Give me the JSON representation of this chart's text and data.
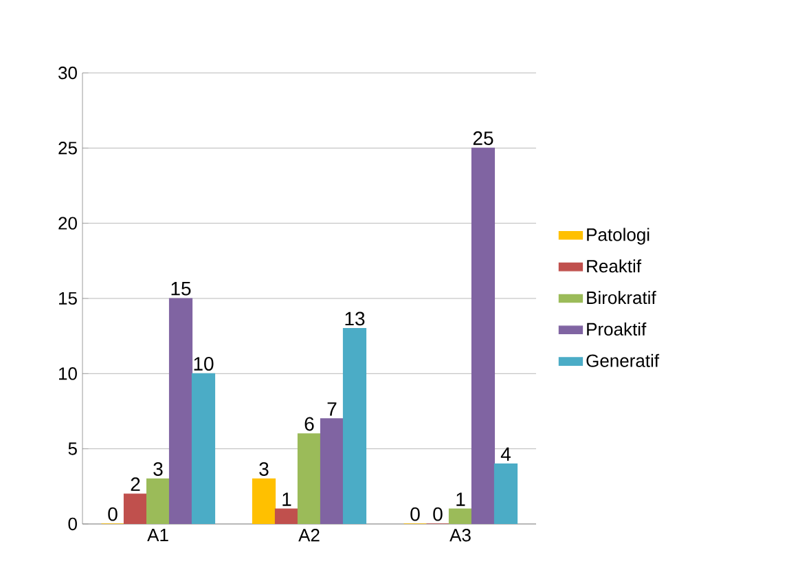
{
  "chart_data": {
    "type": "bar",
    "categories": [
      "A1",
      "A2",
      "A3"
    ],
    "series": [
      {
        "name": "Patologi",
        "color": "#ffc000",
        "values": [
          0,
          3,
          0
        ]
      },
      {
        "name": "Reaktif",
        "color": "#c0504d",
        "values": [
          2,
          1,
          0
        ]
      },
      {
        "name": "Birokratif",
        "color": "#9bbb59",
        "values": [
          3,
          6,
          1
        ]
      },
      {
        "name": "Proaktif",
        "color": "#8064a2",
        "values": [
          15,
          7,
          25
        ]
      },
      {
        "name": "Generatif",
        "color": "#4bacc6",
        "values": [
          10,
          13,
          4
        ]
      }
    ],
    "ylim": [
      0,
      30
    ],
    "yticks": [
      0,
      5,
      10,
      15,
      20,
      25,
      30
    ],
    "grid": "y",
    "legend": "right",
    "data_labels": true
  }
}
